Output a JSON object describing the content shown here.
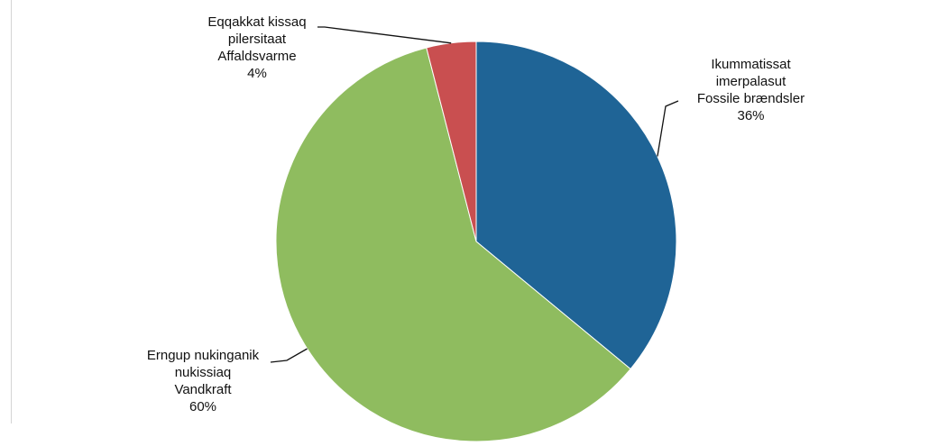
{
  "chart_data": {
    "type": "pie",
    "slices": [
      {
        "lines": [
          "Ikummatissat",
          "imerpalasut",
          "Fossile brændsler"
        ],
        "pct_label": "36%",
        "value": 36,
        "color": "#1f6496"
      },
      {
        "lines": [
          "Erngup nukinganik",
          "nukissiaq",
          "Vandkraft"
        ],
        "pct_label": "60%",
        "value": 60,
        "color": "#8fbc5f"
      },
      {
        "lines": [
          "Eqqakkat kissaq",
          "pilersitaat",
          "Affaldsvarme"
        ],
        "pct_label": "4%",
        "value": 4,
        "color": "#c94f50"
      }
    ],
    "start": "12 o'clock",
    "direction": "clockwise",
    "legend": "none",
    "data_labels": "outside with leader lines"
  }
}
